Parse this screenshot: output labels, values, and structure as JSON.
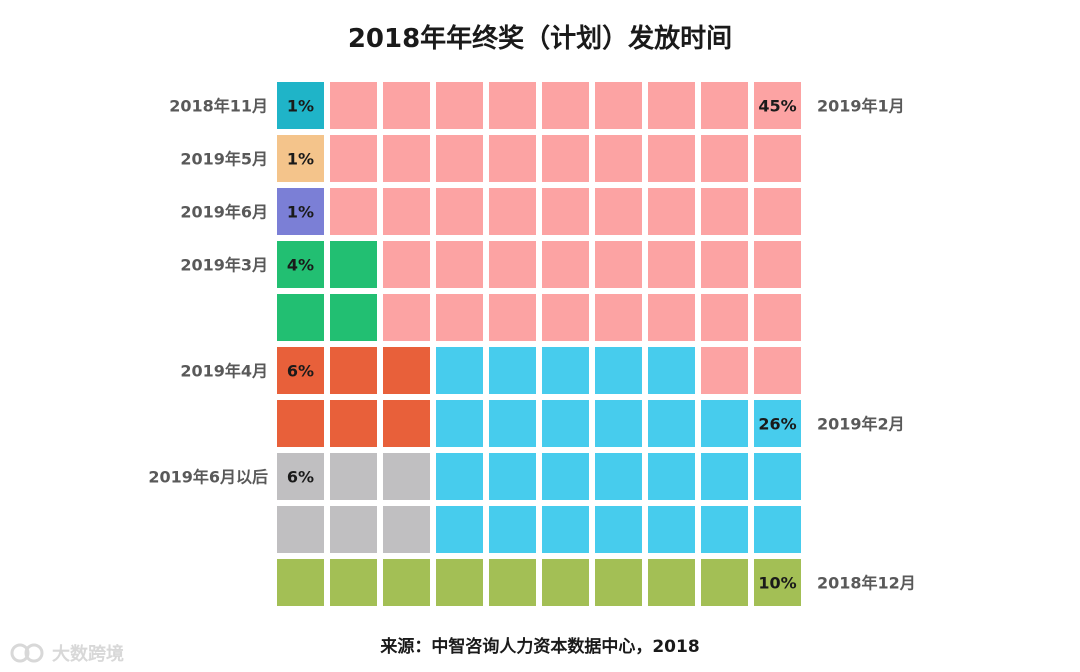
{
  "title": "2018年年终奖（计划）发放时间",
  "source": "来源：中智咨询人力资本数据中心，2018",
  "watermark": "大数跨境",
  "chart_data": {
    "type": "waffle",
    "grid": {
      "rows": 10,
      "cols": 10
    },
    "title": "2018年年终奖（计划）发放时间",
    "series": [
      {
        "name": "2018年11月",
        "value": 1,
        "label": "1%",
        "color": "#1fb4c8",
        "fill": "row-major",
        "start_row": 0,
        "start_col": 0,
        "label_side": "left"
      },
      {
        "name": "2019年5月",
        "value": 1,
        "label": "1%",
        "color": "#f4c48b",
        "fill": "row-major",
        "start_row": 1,
        "start_col": 0,
        "label_side": "left"
      },
      {
        "name": "2019年6月",
        "value": 1,
        "label": "1%",
        "color": "#7b7fd6",
        "fill": "row-major",
        "start_row": 2,
        "start_col": 0,
        "label_side": "left"
      },
      {
        "name": "2019年3月",
        "value": 4,
        "label": "4%",
        "color": "#22bf72",
        "fill": "row-major",
        "start_row": 3,
        "start_col": 0,
        "label_side": "left"
      },
      {
        "name": "2019年4月",
        "value": 6,
        "label": "6%",
        "color": "#e8603a",
        "fill": "row-major",
        "start_row": 5,
        "start_col": 0,
        "label_side": "left"
      },
      {
        "name": "2019年6月以后",
        "value": 6,
        "label": "6%",
        "color": "#c0bfc1",
        "fill": "row-major",
        "start_row": 7,
        "start_col": 0,
        "label_side": "left"
      },
      {
        "name": "2019年1月",
        "value": 45,
        "label": "45%",
        "color": "#fca3a3",
        "fill": "remaining",
        "label_cell": [
          0,
          9
        ],
        "label_side": "right"
      },
      {
        "name": "2019年2月",
        "value": 26,
        "label": "26%",
        "color": "#47cced",
        "fill": "rect",
        "rows": [
          5,
          8
        ],
        "cols": [
          3,
          9
        ],
        "exclude": [
          [
            5,
            8
          ],
          [
            5,
            9
          ]
        ],
        "label_cell": [
          6,
          9
        ],
        "label_side": "right"
      },
      {
        "name": "2018年12月",
        "value": 10,
        "label": "10%",
        "color": "#a3bf55",
        "fill": "row-major",
        "start_row": 9,
        "start_col": 0,
        "label_cell": [
          9,
          9
        ],
        "label_side": "right"
      }
    ]
  }
}
